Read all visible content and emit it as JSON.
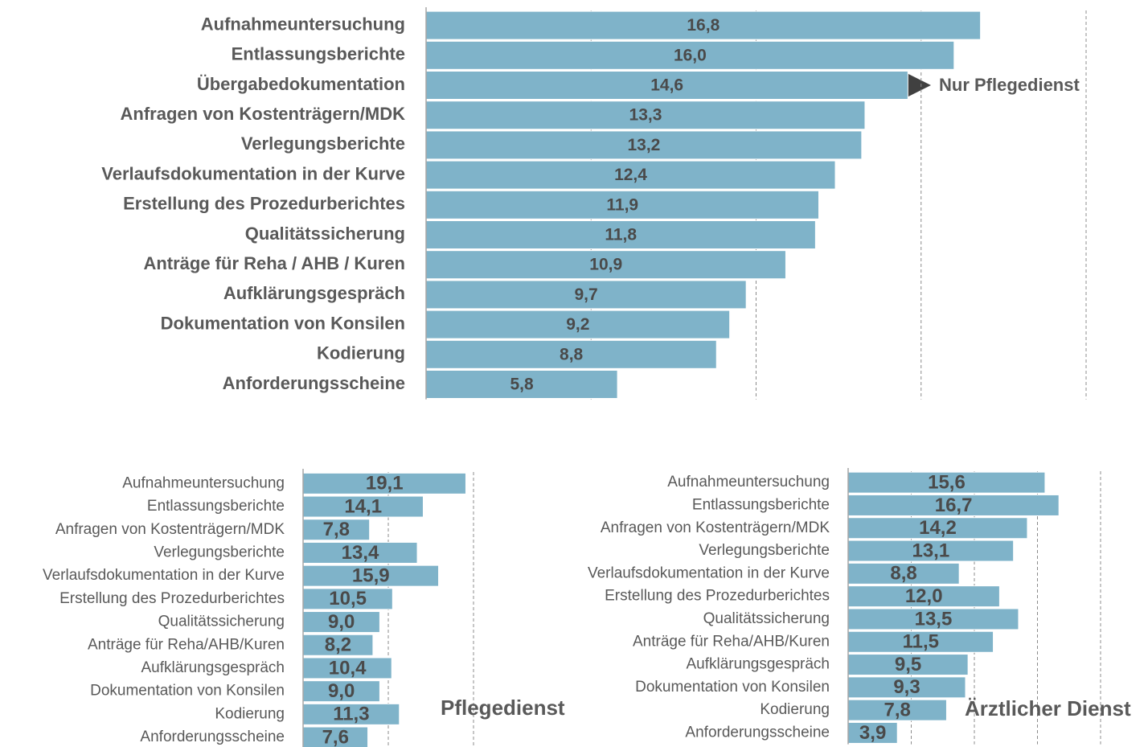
{
  "chart_data": [
    {
      "type": "bar",
      "orientation": "horizontal",
      "color": "#7fb3c9",
      "categories": [
        "Aufnahmeuntersuchung",
        "Entlassungsberichte",
        "Übergabedokumentation",
        "Anfragen von Kostenträgern/MDK",
        "Verlegungsberichte",
        "Verlaufsdokumentation in der Kurve",
        "Erstellung des Prozedurberichtes",
        "Qualitätssicherung",
        "Anträge für Reha / AHB / Kuren",
        "Aufklärungsgespräch",
        "Dokumentation von Konsilen",
        "Kodierung",
        "Anforderungsscheine"
      ],
      "values": [
        16.8,
        16.0,
        14.6,
        13.3,
        13.2,
        12.4,
        11.9,
        11.8,
        10.9,
        9.7,
        9.2,
        8.8,
        5.8
      ],
      "value_labels": [
        "16,8",
        "16,0",
        "14,6",
        "13,3",
        "13,2",
        "12,4",
        "11,9",
        "11,8",
        "10,9",
        "9,7",
        "9,2",
        "8,8",
        "5,8"
      ],
      "xlim": [
        0,
        20
      ],
      "xticks": [
        5,
        10,
        15,
        20
      ],
      "grid": true,
      "annotations": [
        {
          "text": "Nur Pflegedienst",
          "category": 2
        }
      ]
    },
    {
      "type": "bar",
      "orientation": "horizontal",
      "color": "#7fb3c9",
      "title": "Pflegedienst",
      "categories": [
        "Aufnahmeuntersuchung",
        "Entlassungsberichte",
        "Anfragen von Kostenträgern/MDK",
        "Verlegungsberichte",
        "Verlaufsdokumentation in der Kurve",
        "Erstellung des Prozedurberichtes",
        "Qualitätssicherung",
        "Anträge für Reha/AHB/Kuren",
        "Aufklärungsgespräch",
        "Dokumentation von Konsilen",
        "Kodierung",
        "Anforderungsscheine"
      ],
      "values": [
        19.1,
        14.1,
        7.8,
        13.4,
        15.9,
        10.5,
        9.0,
        8.2,
        10.4,
        9.0,
        11.3,
        7.6
      ],
      "value_labels": [
        "19,1",
        "14,1",
        "7,8",
        "13,4",
        "15,9",
        "10,5",
        "9,0",
        "8,2",
        "10,4",
        "9,0",
        "11,3",
        "7,6"
      ],
      "xlim": [
        0,
        20
      ],
      "xticks": [
        10,
        20
      ],
      "grid": true
    },
    {
      "type": "bar",
      "orientation": "horizontal",
      "color": "#7fb3c9",
      "title": "Ärztlicher Dienst",
      "categories": [
        "Aufnahmeuntersuchung",
        "Entlassungsberichte",
        "Anfragen von Kostenträgern/MDK",
        "Verlegungsberichte",
        "Verlaufsdokumentation in der Kurve",
        "Erstellung des Prozedurberichtes",
        "Qualitätssicherung",
        "Anträge für Reha/AHB/Kuren",
        "Aufklärungsgespräch",
        "Dokumentation von Konsilen",
        "Kodierung",
        "Anforderungsscheine"
      ],
      "values": [
        15.6,
        16.7,
        14.2,
        13.1,
        8.8,
        12.0,
        13.5,
        11.5,
        9.5,
        9.3,
        7.8,
        3.9
      ],
      "value_labels": [
        "15,6",
        "16,7",
        "14,2",
        "13,1",
        "8,8",
        "12,0",
        "13,5",
        "11,5",
        "9,5",
        "9,3",
        "7,8",
        "3,9"
      ],
      "xlim": [
        0,
        20
      ],
      "xticks": [
        5,
        10,
        15,
        20
      ],
      "grid": true
    }
  ]
}
